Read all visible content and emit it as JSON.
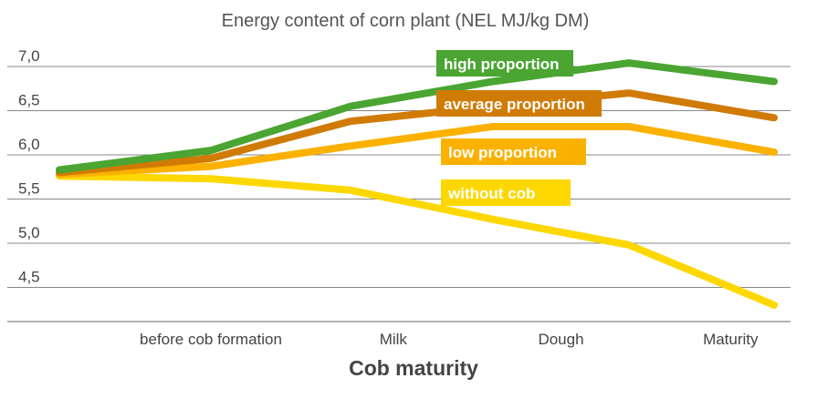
{
  "chart_data": {
    "type": "line",
    "title": "Energy content of corn plant (NEL MJ/kg DM)",
    "xlabel": "Cob maturity",
    "ylabel": "",
    "ylim": [
      4.2,
      7.0
    ],
    "grid": true,
    "x": [
      0,
      1,
      2,
      3,
      4,
      5
    ],
    "x_tick_labels": [
      {
        "x": 1,
        "label": "before cob formation"
      },
      {
        "x": 2.3,
        "label": "Milk"
      },
      {
        "x": 3.5,
        "label": "Dough"
      },
      {
        "x": 4.7,
        "label": "Maturity"
      }
    ],
    "y_ticks": [
      7.0,
      6.5,
      6.0,
      5.5,
      5.0,
      4.5
    ],
    "y_tick_labels": [
      "7,0",
      "6,5",
      "6,0",
      "5,5",
      "5,0",
      "4,5"
    ],
    "series": [
      {
        "name": "without cob",
        "color": "#fdd700",
        "values": [
          5.76,
          5.73,
          5.6,
          5.27,
          4.98,
          4.3
        ]
      },
      {
        "name": "low proportion",
        "color": "#fbb100",
        "values": [
          5.78,
          5.87,
          6.1,
          6.32,
          6.32,
          6.03
        ]
      },
      {
        "name": "average proportion",
        "color": "#d07b06",
        "values": [
          5.8,
          5.96,
          6.38,
          6.55,
          6.7,
          6.42
        ]
      },
      {
        "name": "high proportion",
        "color": "#4aa532",
        "values": [
          5.83,
          6.05,
          6.55,
          6.83,
          7.04,
          6.83
        ]
      }
    ]
  }
}
